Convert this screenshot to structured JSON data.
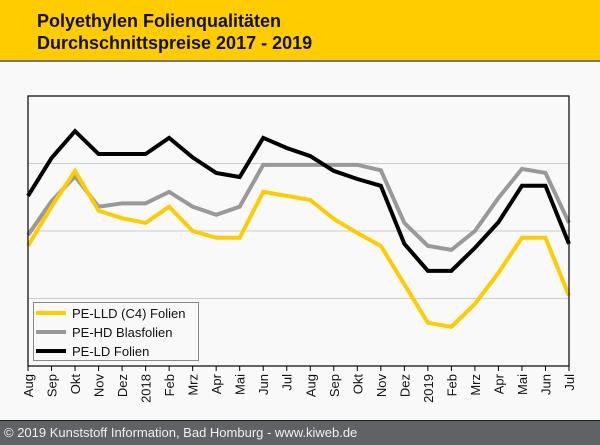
{
  "header": {
    "title_line1": "Polyethylen Folienqualitäten",
    "title_line2": "Durchschnittspreise 2017 - 2019"
  },
  "footer": {
    "text": "© 2019 Kunststoff Information, Bad Homburg - www.kiweb.de"
  },
  "colors": {
    "header_bg": "#ffcc00",
    "footer_bg": "#616265",
    "pe_lld": "#ffcc00",
    "pe_hd": "#999999",
    "pe_ld": "#000000",
    "grid": "#cccccc"
  },
  "chart_data": {
    "type": "line",
    "title": "Polyethylen Folienqualitäten Durchschnittspreise 2017 - 2019",
    "xlabel": "",
    "ylabel": "",
    "y_units": "relative index (no y-axis labels shown)",
    "ylim": [
      0,
      4
    ],
    "y_gridlines": [
      1,
      2,
      3
    ],
    "grid": true,
    "legend_position": "bottom-left",
    "categories": [
      "Aug",
      "Sep",
      "Okt",
      "Nov",
      "Dez",
      "2018",
      "Feb",
      "Mrz",
      "Apr",
      "Mai",
      "Jun",
      "Jul",
      "Aug",
      "Sep",
      "Okt",
      "Nov",
      "Dez",
      "2019",
      "Feb",
      "Mrz",
      "Apr",
      "Mai",
      "Jun",
      "Jul"
    ],
    "series": [
      {
        "name": "PE-LLD (C4) Folien",
        "color": "#ffcc00",
        "values": [
          1.78,
          2.36,
          2.89,
          2.3,
          2.19,
          2.12,
          2.36,
          2.0,
          1.9,
          1.9,
          2.58,
          2.52,
          2.46,
          2.18,
          1.97,
          1.78,
          1.21,
          0.64,
          0.58,
          0.92,
          1.38,
          1.9,
          1.9,
          1.04
        ]
      },
      {
        "name": "PE-HD Blasfolien",
        "color": "#999999",
        "values": [
          1.94,
          2.44,
          2.81,
          2.36,
          2.41,
          2.41,
          2.58,
          2.36,
          2.24,
          2.36,
          2.98,
          2.98,
          2.98,
          2.98,
          2.98,
          2.9,
          2.12,
          1.78,
          1.72,
          2.0,
          2.49,
          2.92,
          2.86,
          2.12
        ]
      },
      {
        "name": "PE-LD Folien",
        "color": "#000000",
        "values": [
          2.52,
          3.08,
          3.48,
          3.14,
          3.14,
          3.14,
          3.38,
          3.09,
          2.86,
          2.8,
          3.38,
          3.23,
          3.11,
          2.89,
          2.77,
          2.67,
          1.81,
          1.41,
          1.41,
          1.75,
          2.13,
          2.67,
          2.67,
          1.81
        ]
      }
    ]
  }
}
